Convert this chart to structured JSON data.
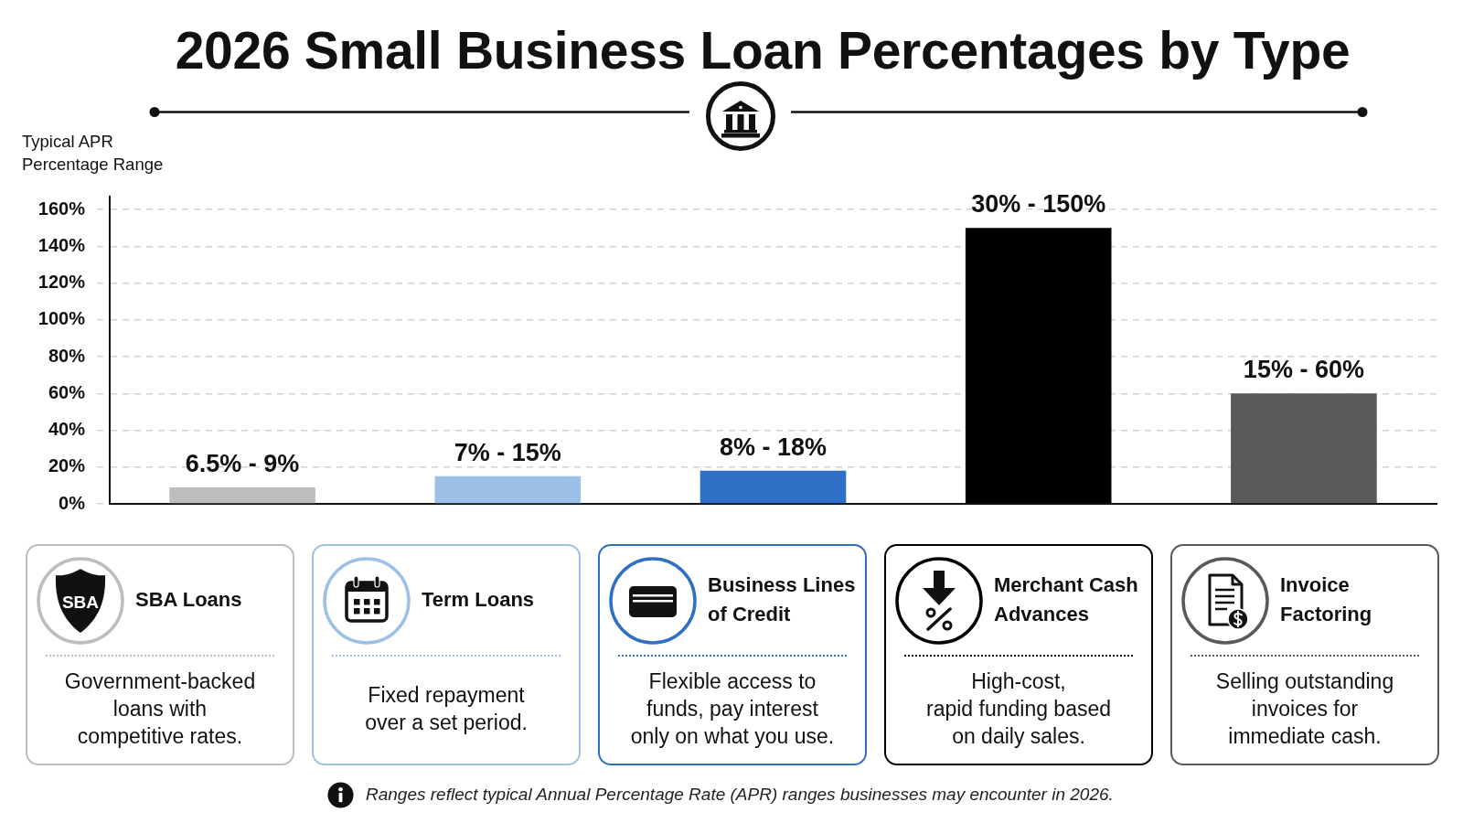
{
  "chart_data": {
    "type": "bar",
    "title": "2026 Small Business Loan Percentages by Type",
    "ylabel": "Typical APR Percentage Range",
    "categories": [
      "SBA Loans",
      "Term Loans",
      "Business Lines of Credit",
      "Merchant Cash Advances",
      "Invoice Factoring"
    ],
    "values": [
      9,
      15,
      18,
      150,
      60
    ],
    "colors": [
      "#bdbdbd",
      "#9dc0e8",
      "#2f6fc4",
      "#000000",
      "#595959"
    ],
    "ylim": [
      0,
      167
    ],
    "yticks": [
      {
        "value": 0,
        "label": "0%"
      },
      {
        "value": 20,
        "label": "20%"
      },
      {
        "value": 40,
        "label": "40%"
      },
      {
        "value": 60,
        "label": "60%"
      },
      {
        "value": 80,
        "label": "80%"
      },
      {
        "value": 100,
        "label": "100%"
      },
      {
        "value": 120,
        "label": "120%"
      },
      {
        "value": 140,
        "label": "140%"
      },
      {
        "value": 160,
        "label": "160%"
      }
    ],
    "grid": "y",
    "annotations": [
      {
        "text": "6.5% - 9%",
        "x": "SBA Loans",
        "y": 9
      },
      {
        "text": "7% - 15%",
        "x": "Term Loans",
        "y": 15
      },
      {
        "text": "8% - 18%",
        "x": "Business Lines of Credit",
        "y": 18
      },
      {
        "text": "30% - 150%",
        "x": "Merchant Cash Advances",
        "y": 150
      },
      {
        "text": "15% - 60%",
        "x": "Invoice Factoring",
        "y": 60
      },
      "Government-backed\nloans with\ncompetitive rates.",
      "Fixed repayment\nover a set period.",
      "Flexible access to\nfunds, pay interest\nonly on what you use.",
      "High-cost,\nrapid funding based\non daily sales.",
      "Selling outstanding\ninvoices for\nimmediate cash.",
      "Ranges reflect typical Annual Percentage Rate (APR) ranges businesses may encounter in 2026.",
      "SBA"
    ]
  }
}
